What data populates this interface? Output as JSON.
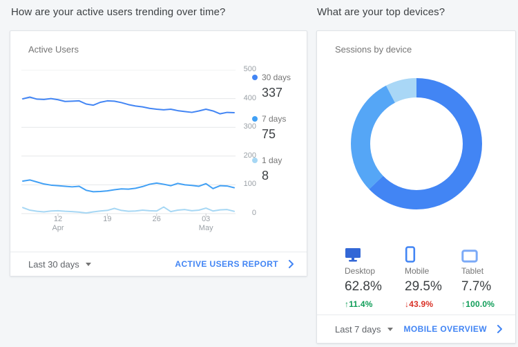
{
  "accent_color": "#4285f4",
  "left_card": {
    "question": "How are your active users trending over time?",
    "title": "Active Users",
    "legend": [
      {
        "label": "30 days",
        "value": "337",
        "color": "#4285f4"
      },
      {
        "label": "7 days",
        "value": "75",
        "color": "#41a0f5"
      },
      {
        "label": "1 day",
        "value": "8",
        "color": "#a6d7f4"
      }
    ],
    "footer": {
      "range_label": "Last 30 days",
      "link_label": "ACTIVE USERS REPORT"
    }
  },
  "right_card": {
    "question": "What are your top devices?",
    "title": "Sessions by device",
    "devices": [
      {
        "label": "Desktop",
        "pct": "62.8%",
        "change_text": "↑11.4%",
        "change_color": "#0f9d58",
        "icon_color": "#3367d6"
      },
      {
        "label": "Mobile",
        "pct": "29.5%",
        "change_text": "↓43.9%",
        "change_color": "#d93025",
        "icon_color": "#4285f4"
      },
      {
        "label": "Tablet",
        "pct": "7.7%",
        "change_text": "↑100.0%",
        "change_color": "#0f9d58",
        "icon_color": "#7baaf7"
      }
    ],
    "footer": {
      "range_label": "Last 7 days",
      "link_label": "MOBILE OVERVIEW"
    }
  },
  "chart_data": [
    {
      "type": "line",
      "title": "Active Users",
      "xlabel": "",
      "ylabel": "",
      "ylim": [
        0,
        500
      ],
      "y_ticks": [
        0,
        100,
        200,
        300,
        400,
        500
      ],
      "grid": true,
      "legend_position": "right",
      "x_ticks": [
        {
          "index": 5,
          "line1": "12",
          "line2": "Apr"
        },
        {
          "index": 12,
          "line1": "19",
          "line2": ""
        },
        {
          "index": 19,
          "line1": "26",
          "line2": ""
        },
        {
          "index": 26,
          "line1": "03",
          "line2": "May"
        }
      ],
      "series": [
        {
          "name": "30 days",
          "total": 337,
          "color": "#4285f4",
          "values": [
            399,
            405,
            398,
            397,
            400,
            396,
            390,
            391,
            392,
            381,
            377,
            387,
            392,
            391,
            386,
            379,
            374,
            371,
            366,
            363,
            361,
            363,
            358,
            355,
            352,
            357,
            363,
            357,
            347,
            352,
            351
          ]
        },
        {
          "name": "7 days",
          "total": 75,
          "color": "#41a0f5",
          "values": [
            113,
            117,
            110,
            103,
            99,
            97,
            95,
            93,
            95,
            81,
            76,
            77,
            79,
            83,
            86,
            85,
            88,
            94,
            102,
            106,
            102,
            97,
            105,
            100,
            98,
            95,
            104,
            87,
            97,
            96,
            90
          ]
        },
        {
          "name": "1 day",
          "total": 8,
          "color": "#a6d7f4",
          "values": [
            21,
            12,
            8,
            6,
            9,
            10,
            8,
            7,
            5,
            2,
            6,
            9,
            11,
            18,
            11,
            8,
            9,
            12,
            10,
            9,
            23,
            7,
            12,
            14,
            10,
            12,
            19,
            9,
            13,
            14,
            8
          ]
        }
      ]
    },
    {
      "type": "pie",
      "donut": true,
      "title": "Sessions by device",
      "segments": [
        {
          "name": "Desktop",
          "pct": 62.8,
          "color": "#4285f4"
        },
        {
          "name": "Mobile",
          "pct": 29.5,
          "color": "#55a6f6"
        },
        {
          "name": "Tablet",
          "pct": 7.7,
          "color": "#a9d7f6"
        }
      ]
    }
  ]
}
